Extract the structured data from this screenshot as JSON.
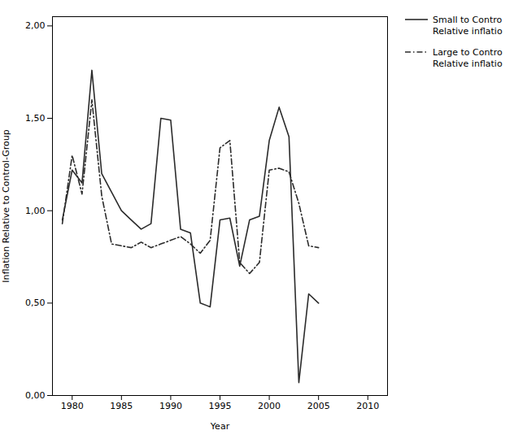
{
  "chart_data": {
    "type": "line",
    "xlabel": "Year",
    "ylabel": "Inflation Relative to Control-Group",
    "x": [
      1979,
      1980,
      1981,
      1982,
      1983,
      1984,
      1985,
      1986,
      1987,
      1988,
      1989,
      1990,
      1991,
      1992,
      1993,
      1994,
      1995,
      1996,
      1997,
      1998,
      1999,
      2000,
      2001,
      2002,
      2003,
      2004,
      2005
    ],
    "xlim": [
      1978,
      2012
    ],
    "xticks": [
      1980,
      1985,
      1990,
      1995,
      2000,
      2005,
      2010
    ],
    "ylim": [
      0.0,
      2.05
    ],
    "yticks": [
      {
        "value": 0.0,
        "label": "0,00"
      },
      {
        "value": 0.5,
        "label": "0,50"
      },
      {
        "value": 1.0,
        "label": "1,00"
      },
      {
        "value": 1.5,
        "label": "1,50"
      },
      {
        "value": 2.0,
        "label": "2,00"
      }
    ],
    "series": [
      {
        "name": "Small to Contro\nRelative inflatio",
        "color": "#2b2b2b",
        "line_style": "solid",
        "values": [
          0.95,
          1.22,
          1.15,
          1.76,
          1.2,
          1.1,
          1.0,
          0.95,
          0.9,
          0.93,
          1.5,
          1.49,
          0.9,
          0.88,
          0.5,
          0.48,
          0.95,
          0.96,
          0.7,
          0.95,
          0.97,
          1.38,
          1.56,
          1.4,
          0.07,
          0.55,
          0.5
        ]
      },
      {
        "name": "Large to Contro\nRelative inflatio",
        "color": "#2b2b2b",
        "line_style": "dashdot",
        "values": [
          0.93,
          1.3,
          1.09,
          1.6,
          1.08,
          0.82,
          0.81,
          0.8,
          0.83,
          0.8,
          0.82,
          0.84,
          0.86,
          0.82,
          0.77,
          0.84,
          1.34,
          1.38,
          0.72,
          0.66,
          0.72,
          1.22,
          1.23,
          1.21,
          1.04,
          0.81,
          0.8
        ]
      }
    ],
    "legend": "right",
    "grid": false
  }
}
